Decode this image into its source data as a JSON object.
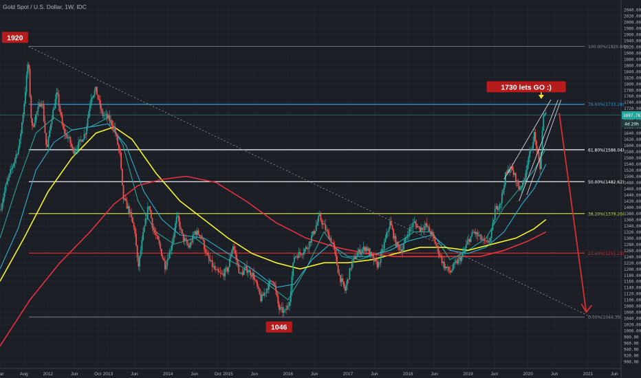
{
  "header": {
    "title": "Gold Spot / U.S. Dollar, 1W, IDC"
  },
  "colors": {
    "background": "#1c1e26",
    "grid": "#2a2d38",
    "axis_text": "#b2b5be",
    "candle_up": "#26a69a",
    "candle_down": "#ef5350",
    "ma_fast": "#26a69a",
    "ma_mid": "#2db3d1",
    "ma_yellow": "#f5f52a",
    "ma_red": "#e8323e",
    "fib_white": "#ffffff",
    "fib_blue": "#2e9fd6",
    "fib_yellow": "#c9d64a",
    "fib_red": "#d92b2b",
    "fib_grey": "#8a8d96",
    "arrow_red": "#d93030",
    "callout_bg": "#b71c1c",
    "price_badge": "#26a69a"
  },
  "chart_data": {
    "type": "candlestick",
    "title": "Gold Spot / U.S. Dollar, 1W, IDC",
    "ylim": [
      880,
      2060
    ],
    "y_ticks": [
      900,
      920,
      940,
      960,
      980,
      1000,
      1020,
      1040,
      1060,
      1080,
      1100,
      1120,
      1140,
      1160,
      1180,
      1200,
      1220,
      1240,
      1260,
      1280,
      1300,
      1320,
      1340,
      1360,
      1380,
      1400,
      1420,
      1440,
      1460,
      1480,
      1500,
      1520,
      1540,
      1560,
      1580,
      1600,
      1620,
      1640,
      1660,
      1680,
      1700,
      1720,
      1740,
      1760,
      1780,
      1800,
      1820,
      1840,
      1860,
      1880,
      1900,
      1920,
      1940,
      1960,
      1980,
      2000,
      2020,
      2040
    ],
    "y_tick_labels": [
      "900.00",
      "920.00",
      "940.00",
      "960.00",
      "980.00",
      "1000.00",
      "1020.00",
      "1040.00",
      "1060.00",
      "1080.00",
      "1100.00",
      "1120.00",
      "1140.00",
      "1160.00",
      "1180.00",
      "1200.00",
      "1220.00",
      "1240.00",
      "1260.00",
      "1280.00",
      "1300.00",
      "1320.00",
      "1340.00",
      "1360.00",
      "1380.00",
      "1400.00",
      "1420.00",
      "1440.00",
      "1460.00",
      "1480.00",
      "1500.00",
      "1520.00",
      "1540.00",
      "1560.00",
      "1580.00",
      "1600.00",
      "1620.00",
      "1640.00",
      "1660.00",
      "1680.00",
      "1700.00",
      "1720.00",
      "1740.00",
      "1760.00",
      "1780.00",
      "1800.00",
      "1820.00",
      "1840.00",
      "1860.00",
      "1880.00",
      "1900.00",
      "1920.00",
      "1940.00",
      "1960.00",
      "1980.00",
      "2000.00",
      "2020.00",
      "2040.00"
    ],
    "xlim": [
      2011.2,
      2021.55
    ],
    "x_ticks": [
      {
        "t": 2011.2,
        "label": "Mar"
      },
      {
        "t": 2011.6,
        "label": "Aug"
      },
      {
        "t": 2012.0,
        "label": "2012"
      },
      {
        "t": 2012.44,
        "label": "Jun"
      },
      {
        "t": 2012.83,
        "label": "Oct"
      },
      {
        "t": 2013.0,
        "label": "2013"
      },
      {
        "t": 2013.44,
        "label": "Jun"
      },
      {
        "t": 2014.0,
        "label": "2014"
      },
      {
        "t": 2014.44,
        "label": "Jun"
      },
      {
        "t": 2014.83,
        "label": "Oct"
      },
      {
        "t": 2015.0,
        "label": "2015"
      },
      {
        "t": 2015.44,
        "label": "Jun"
      },
      {
        "t": 2016.0,
        "label": "2016"
      },
      {
        "t": 2016.44,
        "label": "Jun"
      },
      {
        "t": 2017.0,
        "label": "2017"
      },
      {
        "t": 2017.44,
        "label": "Jun"
      },
      {
        "t": 2018.0,
        "label": "2018"
      },
      {
        "t": 2018.44,
        "label": "Jun"
      },
      {
        "t": 2019.0,
        "label": "2019"
      },
      {
        "t": 2019.44,
        "label": "Jun"
      },
      {
        "t": 2020.0,
        "label": "2020"
      },
      {
        "t": 2020.44,
        "label": "Jun"
      },
      {
        "t": 2021.0,
        "label": "2021"
      },
      {
        "t": 2021.44,
        "label": "Jun"
      }
    ],
    "price_path": [
      [
        2011.2,
        1390
      ],
      [
        2011.3,
        1470
      ],
      [
        2011.42,
        1540
      ],
      [
        2011.52,
        1600
      ],
      [
        2011.6,
        1730
      ],
      [
        2011.67,
        1880
      ],
      [
        2011.73,
        1650
      ],
      [
        2011.8,
        1700
      ],
      [
        2011.9,
        1750
      ],
      [
        2011.98,
        1580
      ],
      [
        2012.05,
        1680
      ],
      [
        2012.15,
        1770
      ],
      [
        2012.25,
        1650
      ],
      [
        2012.35,
        1620
      ],
      [
        2012.42,
        1580
      ],
      [
        2012.5,
        1600
      ],
      [
        2012.62,
        1640
      ],
      [
        2012.72,
        1760
      ],
      [
        2012.8,
        1780
      ],
      [
        2012.9,
        1700
      ],
      [
        2013.0,
        1690
      ],
      [
        2013.1,
        1660
      ],
      [
        2013.2,
        1570
      ],
      [
        2013.25,
        1430
      ],
      [
        2013.35,
        1390
      ],
      [
        2013.45,
        1320
      ],
      [
        2013.5,
        1200
      ],
      [
        2013.6,
        1330
      ],
      [
        2013.68,
        1410
      ],
      [
        2013.75,
        1330
      ],
      [
        2013.85,
        1280
      ],
      [
        2013.95,
        1210
      ],
      [
        2014.05,
        1270
      ],
      [
        2014.15,
        1370
      ],
      [
        2014.25,
        1300
      ],
      [
        2014.35,
        1270
      ],
      [
        2014.45,
        1320
      ],
      [
        2014.55,
        1310
      ],
      [
        2014.65,
        1240
      ],
      [
        2014.8,
        1190
      ],
      [
        2014.9,
        1180
      ],
      [
        2015.0,
        1200
      ],
      [
        2015.08,
        1280
      ],
      [
        2015.2,
        1180
      ],
      [
        2015.3,
        1200
      ],
      [
        2015.42,
        1180
      ],
      [
        2015.55,
        1100
      ],
      [
        2015.65,
        1140
      ],
      [
        2015.75,
        1170
      ],
      [
        2015.85,
        1070
      ],
      [
        2015.95,
        1060
      ],
      [
        2016.02,
        1090
      ],
      [
        2016.1,
        1240
      ],
      [
        2016.2,
        1250
      ],
      [
        2016.32,
        1270
      ],
      [
        2016.45,
        1330
      ],
      [
        2016.52,
        1370
      ],
      [
        2016.62,
        1330
      ],
      [
        2016.75,
        1280
      ],
      [
        2016.85,
        1180
      ],
      [
        2016.95,
        1130
      ],
      [
        2017.05,
        1210
      ],
      [
        2017.15,
        1250
      ],
      [
        2017.3,
        1270
      ],
      [
        2017.42,
        1230
      ],
      [
        2017.5,
        1210
      ],
      [
        2017.6,
        1280
      ],
      [
        2017.7,
        1350
      ],
      [
        2017.8,
        1280
      ],
      [
        2017.9,
        1260
      ],
      [
        2018.0,
        1320
      ],
      [
        2018.1,
        1350
      ],
      [
        2018.2,
        1330
      ],
      [
        2018.3,
        1340
      ],
      [
        2018.4,
        1310
      ],
      [
        2018.5,
        1260
      ],
      [
        2018.6,
        1210
      ],
      [
        2018.7,
        1190
      ],
      [
        2018.8,
        1220
      ],
      [
        2018.9,
        1240
      ],
      [
        2019.0,
        1290
      ],
      [
        2019.1,
        1320
      ],
      [
        2019.2,
        1300
      ],
      [
        2019.3,
        1280
      ],
      [
        2019.38,
        1300
      ],
      [
        2019.45,
        1390
      ],
      [
        2019.55,
        1420
      ],
      [
        2019.62,
        1500
      ],
      [
        2019.7,
        1530
      ],
      [
        2019.78,
        1500
      ],
      [
        2019.85,
        1460
      ],
      [
        2019.93,
        1480
      ],
      [
        2020.0,
        1560
      ],
      [
        2020.05,
        1580
      ],
      [
        2020.1,
        1640
      ],
      [
        2020.15,
        1580
      ],
      [
        2020.2,
        1520
      ],
      [
        2020.25,
        1690
      ],
      [
        2020.3,
        1700
      ]
    ],
    "series": [
      {
        "name": "MA fast",
        "color": "#26a69a",
        "points": [
          [
            2011.2,
            1300
          ],
          [
            2011.5,
            1480
          ],
          [
            2011.8,
            1640
          ],
          [
            2012.1,
            1690
          ],
          [
            2012.4,
            1650
          ],
          [
            2012.7,
            1660
          ],
          [
            2013.0,
            1690
          ],
          [
            2013.25,
            1600
          ],
          [
            2013.5,
            1420
          ],
          [
            2013.8,
            1320
          ],
          [
            2014.1,
            1280
          ],
          [
            2014.45,
            1300
          ],
          [
            2014.8,
            1250
          ],
          [
            2015.2,
            1210
          ],
          [
            2015.6,
            1160
          ],
          [
            2016.0,
            1100
          ],
          [
            2016.3,
            1200
          ],
          [
            2016.6,
            1320
          ],
          [
            2016.9,
            1240
          ],
          [
            2017.2,
            1230
          ],
          [
            2017.5,
            1250
          ],
          [
            2017.8,
            1280
          ],
          [
            2018.1,
            1320
          ],
          [
            2018.4,
            1320
          ],
          [
            2018.7,
            1230
          ],
          [
            2019.0,
            1260
          ],
          [
            2019.3,
            1300
          ],
          [
            2019.6,
            1400
          ],
          [
            2019.9,
            1470
          ],
          [
            2020.1,
            1520
          ],
          [
            2020.3,
            1590
          ]
        ]
      },
      {
        "name": "MA mid",
        "color": "#2db3d1",
        "points": [
          [
            2011.2,
            1200
          ],
          [
            2011.5,
            1330
          ],
          [
            2011.8,
            1520
          ],
          [
            2012.1,
            1610
          ],
          [
            2012.4,
            1650
          ],
          [
            2012.7,
            1660
          ],
          [
            2013.0,
            1670
          ],
          [
            2013.3,
            1600
          ],
          [
            2013.6,
            1450
          ],
          [
            2013.9,
            1360
          ],
          [
            2014.2,
            1310
          ],
          [
            2014.6,
            1300
          ],
          [
            2015.0,
            1250
          ],
          [
            2015.4,
            1200
          ],
          [
            2015.8,
            1140
          ],
          [
            2016.1,
            1150
          ],
          [
            2016.4,
            1230
          ],
          [
            2016.7,
            1280
          ],
          [
            2017.0,
            1240
          ],
          [
            2017.3,
            1240
          ],
          [
            2017.7,
            1260
          ],
          [
            2018.0,
            1290
          ],
          [
            2018.4,
            1310
          ],
          [
            2018.7,
            1260
          ],
          [
            2019.0,
            1250
          ],
          [
            2019.3,
            1270
          ],
          [
            2019.6,
            1320
          ],
          [
            2019.9,
            1410
          ],
          [
            2020.1,
            1460
          ],
          [
            2020.3,
            1540
          ]
        ]
      },
      {
        "name": "MA yellow",
        "color": "#f5f52a",
        "points": [
          [
            2011.2,
            1160
          ],
          [
            2011.6,
            1300
          ],
          [
            2012.0,
            1450
          ],
          [
            2012.4,
            1560
          ],
          [
            2012.8,
            1640
          ],
          [
            2013.1,
            1660
          ],
          [
            2013.4,
            1620
          ],
          [
            2013.8,
            1510
          ],
          [
            2014.2,
            1420
          ],
          [
            2014.6,
            1360
          ],
          [
            2015.0,
            1300
          ],
          [
            2015.4,
            1250
          ],
          [
            2015.8,
            1220
          ],
          [
            2016.2,
            1200
          ],
          [
            2016.6,
            1220
          ],
          [
            2017.0,
            1220
          ],
          [
            2017.4,
            1230
          ],
          [
            2017.8,
            1250
          ],
          [
            2018.2,
            1270
          ],
          [
            2018.6,
            1270
          ],
          [
            2019.0,
            1260
          ],
          [
            2019.4,
            1280
          ],
          [
            2019.8,
            1300
          ],
          [
            2020.1,
            1330
          ],
          [
            2020.3,
            1360
          ]
        ]
      },
      {
        "name": "MA red",
        "color": "#e8323e",
        "points": [
          [
            2011.2,
            950
          ],
          [
            2011.7,
            1100
          ],
          [
            2012.2,
            1220
          ],
          [
            2012.7,
            1320
          ],
          [
            2013.1,
            1410
          ],
          [
            2013.5,
            1470
          ],
          [
            2013.9,
            1490
          ],
          [
            2014.3,
            1500
          ],
          [
            2014.8,
            1480
          ],
          [
            2015.3,
            1420
          ],
          [
            2015.8,
            1350
          ],
          [
            2016.3,
            1300
          ],
          [
            2016.8,
            1270
          ],
          [
            2017.3,
            1250
          ],
          [
            2017.8,
            1240
          ],
          [
            2018.3,
            1240
          ],
          [
            2018.8,
            1240
          ],
          [
            2019.2,
            1240
          ],
          [
            2019.6,
            1260
          ],
          [
            2020.0,
            1290
          ],
          [
            2020.3,
            1320
          ]
        ]
      }
    ],
    "fib_levels": [
      {
        "value": 1920.84,
        "label": "100.00%(1920.84)",
        "color": "#8a8d96"
      },
      {
        "value": 1733.28,
        "label": "78.60%(1733.28)",
        "color": "#2e9fd6"
      },
      {
        "value": 1586.04,
        "label": "61.80%(1586.04)",
        "color": "#ffffff"
      },
      {
        "value": 1482.62,
        "label": "50.00%(1482.62)",
        "color": "#ffffff"
      },
      {
        "value": 1379.2,
        "label": "38.20%(1379.20)",
        "color": "#c9d64a"
      },
      {
        "value": 1251.23,
        "label": "23.60%(1251.23)",
        "color": "#d92b2b"
      },
      {
        "value": 1044.39,
        "label": "0.00%(1044.39)",
        "color": "#8a8d96"
      }
    ],
    "teal_level": 1697.76,
    "current_price": {
      "value": 1697.76,
      "label": "1697.76",
      "countdown": "4d 20h"
    },
    "trendline": [
      [
        2011.68,
        1920
      ],
      [
        2021.05,
        1044
      ]
    ],
    "channel": [
      [
        [
          2019.6,
          1490
        ],
        [
          2020.38,
          1748
        ]
      ],
      [
        [
          2019.85,
          1420
        ],
        [
          2020.5,
          1748
        ]
      ],
      [
        [
          2019.98,
          1440
        ],
        [
          2020.55,
          1748
        ]
      ]
    ],
    "forecast_arrow": [
      [
        2020.52,
        1705
      ],
      [
        2020.97,
        1060
      ]
    ],
    "annotations": [
      {
        "text": "1920",
        "t": 2011.45,
        "price": 1950
      },
      {
        "text": "1730 lets GO :)",
        "t": 2019.97,
        "price": 1790
      },
      {
        "text": "1046",
        "t": 2015.85,
        "price": 1012
      }
    ]
  }
}
